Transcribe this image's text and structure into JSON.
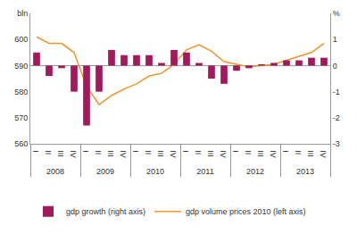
{
  "chart_data": {
    "type": "bar",
    "categories": [
      [
        "2008",
        "I"
      ],
      [
        "2008",
        "II"
      ],
      [
        "2008",
        "III"
      ],
      [
        "2008",
        "IV"
      ],
      [
        "2009",
        "I"
      ],
      [
        "2009",
        "II"
      ],
      [
        "2009",
        "III"
      ],
      [
        "2009",
        "IV"
      ],
      [
        "2010",
        "I"
      ],
      [
        "2010",
        "II"
      ],
      [
        "2010",
        "III"
      ],
      [
        "2010",
        "IV"
      ],
      [
        "2011",
        "I"
      ],
      [
        "2011",
        "II"
      ],
      [
        "2011",
        "III"
      ],
      [
        "2011",
        "IV"
      ],
      [
        "2012",
        "I"
      ],
      [
        "2012",
        "II"
      ],
      [
        "2012",
        "III"
      ],
      [
        "2012",
        "IV"
      ],
      [
        "2013",
        "I"
      ],
      [
        "2013",
        "II"
      ],
      [
        "2013",
        "III"
      ],
      [
        "2013",
        "IV"
      ]
    ],
    "series": [
      {
        "name": "gdp growth (right axis)",
        "type": "bar",
        "axis": "y2",
        "color": "#a3195b",
        "values": [
          0.5,
          -0.4,
          -0.1,
          -1.0,
          -2.3,
          -1.0,
          0.6,
          0.4,
          0.4,
          0.4,
          0.1,
          0.6,
          0.5,
          0.1,
          -0.5,
          -0.7,
          -0.2,
          -0.1,
          0.05,
          0.1,
          0.2,
          0.2,
          0.3,
          0.3
        ]
      },
      {
        "name": "gdp volume prices 2010 (left axis)",
        "type": "line",
        "color": "#f0932a",
        "line_style": "solid",
        "values": [
          601,
          598.5,
          598.5,
          595,
          582,
          575,
          578.5,
          581,
          583,
          586,
          587,
          590.5,
          596,
          598,
          595.5,
          591.5,
          590.5,
          589.5,
          590,
          590.5,
          592,
          593.5,
          595,
          598.5
        ]
      }
    ],
    "ylim": [
      560,
      610
    ],
    "yticks": [
      560,
      570,
      580,
      590,
      600,
      {
        "value": 610,
        "label": "bln"
      }
    ],
    "y2lim": [
      -3,
      2
    ],
    "y2ticks": [
      -3,
      -2,
      -1,
      0,
      1,
      {
        "value": 2,
        "label": "%"
      }
    ],
    "grid": false,
    "legend": "bottom"
  }
}
